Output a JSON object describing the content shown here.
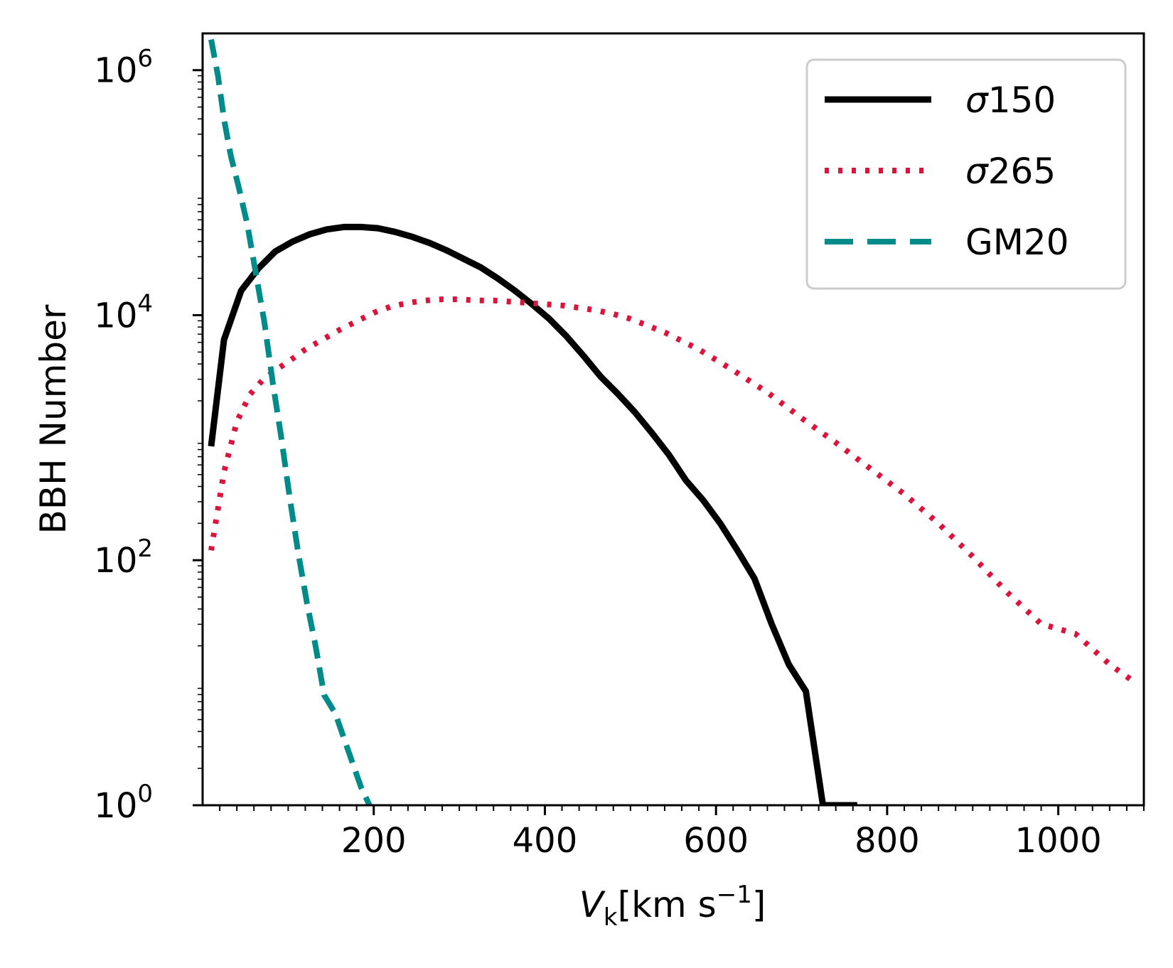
{
  "chart_data": {
    "type": "line",
    "title": "",
    "xlabel": {
      "main": "V",
      "subscript": "k",
      "unit_prefix": "[km s",
      "unit_exponent": "−1",
      "unit_suffix": "]"
    },
    "ylabel": "BBH Number",
    "xlim": [
      0,
      1100
    ],
    "ylim_log10": [
      0,
      6.3
    ],
    "yscale": "log",
    "xticks": [
      {
        "value": 200,
        "label": "200"
      },
      {
        "value": 400,
        "label": "400"
      },
      {
        "value": 600,
        "label": "600"
      },
      {
        "value": 800,
        "label": "800"
      },
      {
        "value": 1000,
        "label": "1000"
      }
    ],
    "yticks": [
      {
        "exp": 0,
        "base": "10",
        "sup": "0"
      },
      {
        "exp": 2,
        "base": "10",
        "sup": "2"
      },
      {
        "exp": 4,
        "base": "10",
        "sup": "4"
      },
      {
        "exp": 6,
        "base": "10",
        "sup": "6"
      }
    ],
    "grid": false,
    "legend_position": "top-right",
    "series": [
      {
        "name": "σ150",
        "color": "#000000",
        "style": "solid",
        "x": [
          10,
          25,
          45,
          65,
          85,
          105,
          125,
          145,
          165,
          185,
          205,
          225,
          245,
          265,
          285,
          305,
          325,
          345,
          365,
          385,
          405,
          425,
          445,
          465,
          485,
          505,
          525,
          545,
          565,
          585,
          605,
          625,
          645,
          665,
          685,
          705,
          725,
          745,
          765
        ],
        "log10_y": [
          2.93,
          3.8,
          4.2,
          4.38,
          4.52,
          4.6,
          4.66,
          4.7,
          4.72,
          4.72,
          4.71,
          4.68,
          4.64,
          4.59,
          4.53,
          4.46,
          4.39,
          4.3,
          4.2,
          4.09,
          3.97,
          3.83,
          3.67,
          3.5,
          3.36,
          3.21,
          3.04,
          2.86,
          2.65,
          2.49,
          2.3,
          2.08,
          1.85,
          1.48,
          1.15,
          0.93,
          0.0,
          0.0,
          0.0
        ]
      },
      {
        "name": "σ265",
        "color": "#dc143c",
        "style": "dotted",
        "x": [
          10,
          25,
          40,
          55,
          70,
          85,
          100,
          120,
          140,
          160,
          180,
          200,
          220,
          240,
          260,
          280,
          300,
          320,
          340,
          360,
          380,
          400,
          420,
          440,
          460,
          480,
          500,
          540,
          580,
          620,
          660,
          700,
          740,
          780,
          820,
          860,
          900,
          940,
          980,
          1020,
          1060,
          1090
        ],
        "log10_y": [
          2.08,
          2.72,
          3.13,
          3.35,
          3.47,
          3.55,
          3.62,
          3.72,
          3.8,
          3.88,
          3.95,
          4.02,
          4.07,
          4.1,
          4.12,
          4.13,
          4.13,
          4.12,
          4.12,
          4.11,
          4.1,
          4.09,
          4.08,
          4.06,
          4.04,
          4.01,
          3.97,
          3.86,
          3.72,
          3.55,
          3.37,
          3.16,
          2.96,
          2.75,
          2.54,
          2.3,
          2.03,
          1.74,
          1.48,
          1.4,
          1.15,
          1.0
        ]
      },
      {
        "name": "GM20",
        "color": "#008b8b",
        "style": "dashed",
        "x": [
          10,
          18,
          25,
          33,
          42,
          52,
          62,
          72,
          82,
          92,
          102,
          112,
          122,
          132,
          142,
          155,
          170,
          185,
          195
        ],
        "log10_y": [
          6.25,
          5.95,
          5.6,
          5.3,
          5.05,
          4.75,
          4.35,
          3.95,
          3.45,
          3.0,
          2.5,
          2.05,
          1.65,
          1.3,
          0.9,
          0.75,
          0.45,
          0.15,
          0.0
        ]
      }
    ]
  }
}
